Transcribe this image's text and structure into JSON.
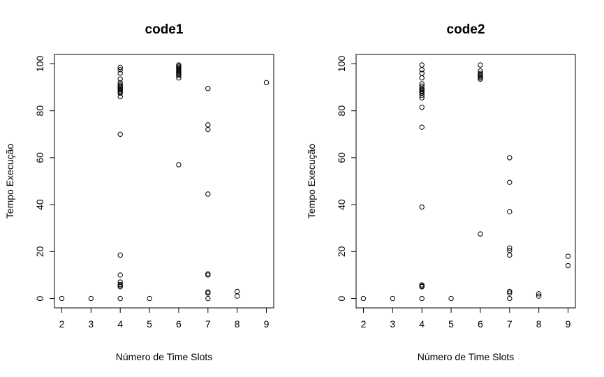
{
  "chart_data": [
    {
      "type": "scatter",
      "title": "code1",
      "xlabel": "Número de Time Slots",
      "ylabel": "Tempo Execução",
      "xlim": [
        1.75,
        9.25
      ],
      "ylim": [
        -4,
        104
      ],
      "xticks": [
        2,
        3,
        4,
        5,
        6,
        7,
        8,
        9
      ],
      "yticks": [
        0,
        20,
        40,
        60,
        80,
        100
      ],
      "grid": false,
      "points": [
        {
          "x": 2,
          "y": 0
        },
        {
          "x": 3,
          "y": 0
        },
        {
          "x": 4,
          "y": 98.5
        },
        {
          "x": 4,
          "y": 97.5
        },
        {
          "x": 4,
          "y": 96
        },
        {
          "x": 4,
          "y": 93.5
        },
        {
          "x": 4,
          "y": 92
        },
        {
          "x": 4,
          "y": 91
        },
        {
          "x": 4,
          "y": 90.5
        },
        {
          "x": 4,
          "y": 90
        },
        {
          "x": 4,
          "y": 89.5
        },
        {
          "x": 4,
          "y": 89
        },
        {
          "x": 4,
          "y": 88.5
        },
        {
          "x": 4,
          "y": 88
        },
        {
          "x": 4,
          "y": 87.5
        },
        {
          "x": 4,
          "y": 86
        },
        {
          "x": 4,
          "y": 70
        },
        {
          "x": 4,
          "y": 18.5
        },
        {
          "x": 4,
          "y": 10
        },
        {
          "x": 4,
          "y": 7
        },
        {
          "x": 4,
          "y": 6
        },
        {
          "x": 4,
          "y": 5.5
        },
        {
          "x": 4,
          "y": 5
        },
        {
          "x": 4,
          "y": 0
        },
        {
          "x": 5,
          "y": 0
        },
        {
          "x": 6,
          "y": 99.5
        },
        {
          "x": 6,
          "y": 99
        },
        {
          "x": 6,
          "y": 98.5
        },
        {
          "x": 6,
          "y": 98
        },
        {
          "x": 6,
          "y": 97.5
        },
        {
          "x": 6,
          "y": 97
        },
        {
          "x": 6,
          "y": 96.5
        },
        {
          "x": 6,
          "y": 96
        },
        {
          "x": 6,
          "y": 95.5
        },
        {
          "x": 6,
          "y": 95
        },
        {
          "x": 6,
          "y": 94
        },
        {
          "x": 6,
          "y": 57
        },
        {
          "x": 7,
          "y": 89.5
        },
        {
          "x": 7,
          "y": 74
        },
        {
          "x": 7,
          "y": 72
        },
        {
          "x": 7,
          "y": 44.5
        },
        {
          "x": 7,
          "y": 10.5
        },
        {
          "x": 7,
          "y": 10
        },
        {
          "x": 7,
          "y": 2.8
        },
        {
          "x": 7,
          "y": 2.3
        },
        {
          "x": 7,
          "y": 0
        },
        {
          "x": 8,
          "y": 3
        },
        {
          "x": 8,
          "y": 1
        },
        {
          "x": 9,
          "y": 92
        }
      ]
    },
    {
      "type": "scatter",
      "title": "code2",
      "xlabel": "Número de Time Slots",
      "ylabel": "Tempo Execução",
      "xlim": [
        1.75,
        9.25
      ],
      "ylim": [
        -4,
        104
      ],
      "xticks": [
        2,
        3,
        4,
        5,
        6,
        7,
        8,
        9
      ],
      "yticks": [
        0,
        20,
        40,
        60,
        80,
        100
      ],
      "grid": false,
      "points": [
        {
          "x": 2,
          "y": 0
        },
        {
          "x": 3,
          "y": 0
        },
        {
          "x": 4,
          "y": 99.5
        },
        {
          "x": 4,
          "y": 97.5
        },
        {
          "x": 4,
          "y": 96
        },
        {
          "x": 4,
          "y": 94
        },
        {
          "x": 4,
          "y": 91.5
        },
        {
          "x": 4,
          "y": 90.5
        },
        {
          "x": 4,
          "y": 89.5
        },
        {
          "x": 4,
          "y": 89
        },
        {
          "x": 4,
          "y": 88.5
        },
        {
          "x": 4,
          "y": 88
        },
        {
          "x": 4,
          "y": 87.5
        },
        {
          "x": 4,
          "y": 86.5
        },
        {
          "x": 4,
          "y": 85.5
        },
        {
          "x": 4,
          "y": 81.5
        },
        {
          "x": 4,
          "y": 73
        },
        {
          "x": 4,
          "y": 39
        },
        {
          "x": 4,
          "y": 5.8
        },
        {
          "x": 4,
          "y": 5.3
        },
        {
          "x": 4,
          "y": 5
        },
        {
          "x": 4,
          "y": 0
        },
        {
          "x": 5,
          "y": 0
        },
        {
          "x": 6,
          "y": 99.5
        },
        {
          "x": 6,
          "y": 97
        },
        {
          "x": 6,
          "y": 96
        },
        {
          "x": 6,
          "y": 95.5
        },
        {
          "x": 6,
          "y": 95
        },
        {
          "x": 6,
          "y": 94.5
        },
        {
          "x": 6,
          "y": 94
        },
        {
          "x": 6,
          "y": 93.5
        },
        {
          "x": 6,
          "y": 27.5
        },
        {
          "x": 7,
          "y": 60
        },
        {
          "x": 7,
          "y": 49.5
        },
        {
          "x": 7,
          "y": 37
        },
        {
          "x": 7,
          "y": 21.5
        },
        {
          "x": 7,
          "y": 20.5
        },
        {
          "x": 7,
          "y": 18.5
        },
        {
          "x": 7,
          "y": 3
        },
        {
          "x": 7,
          "y": 2.3
        },
        {
          "x": 7,
          "y": 0
        },
        {
          "x": 8,
          "y": 2
        },
        {
          "x": 8,
          "y": 1
        },
        {
          "x": 9,
          "y": 18
        },
        {
          "x": 9,
          "y": 14
        }
      ]
    }
  ]
}
